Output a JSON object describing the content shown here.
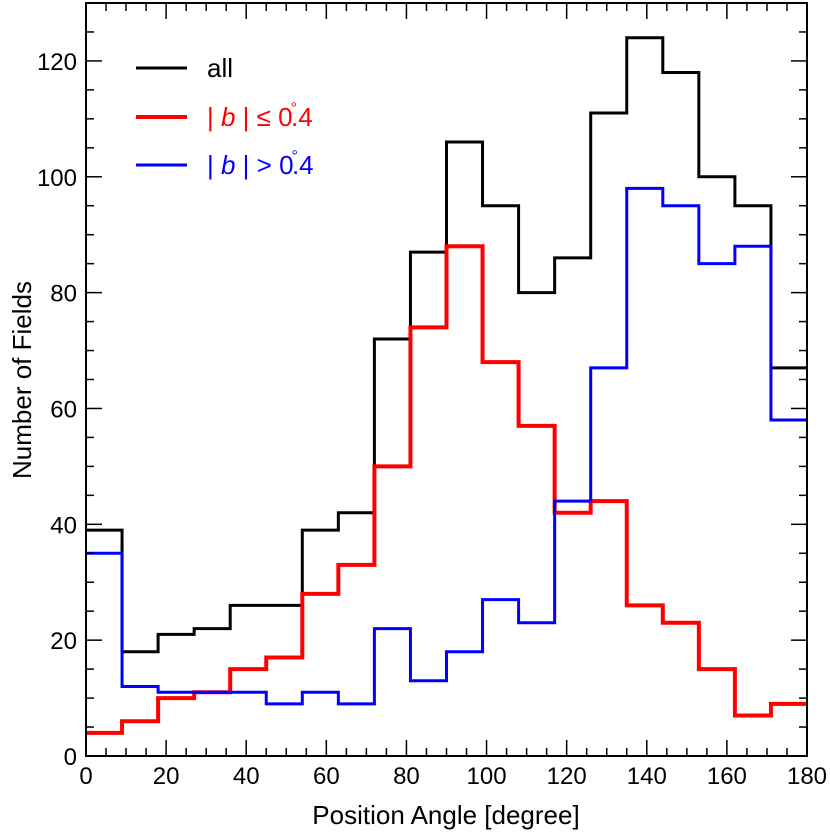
{
  "chart_data": {
    "type": "line",
    "step": true,
    "xlabel": "Position Angle [degree]",
    "ylabel": "Number of Fields",
    "xlim": [
      0,
      180
    ],
    "ylim": [
      0,
      130
    ],
    "x_ticks": [
      0,
      20,
      40,
      60,
      80,
      100,
      120,
      140,
      160,
      180
    ],
    "y_ticks": [
      0,
      20,
      40,
      60,
      80,
      100,
      120
    ],
    "bin_edges": [
      0,
      9,
      18,
      27,
      36,
      45,
      54,
      63,
      72,
      81,
      90,
      99,
      108,
      117,
      126,
      135,
      144,
      153,
      162,
      171,
      180
    ],
    "legend": {
      "position": "top-left"
    },
    "series": [
      {
        "name": "all",
        "legend_parts": [
          "all"
        ],
        "color": "#000000",
        "values": [
          39,
          18,
          21,
          22,
          26,
          26,
          39,
          42,
          72,
          87,
          106,
          95,
          80,
          86,
          111,
          124,
          118,
          100,
          95,
          67
        ]
      },
      {
        "name": "| b | ≤ 0.4°",
        "legend_parts": [
          "| ",
          "b",
          " | ",
          "≤",
          " 0",
          "°",
          ".4"
        ],
        "color": "#ff0000",
        "values": [
          4,
          6,
          10,
          11,
          15,
          17,
          28,
          33,
          50,
          74,
          88,
          68,
          57,
          42,
          44,
          26,
          23,
          15,
          7,
          9
        ]
      },
      {
        "name": "| b | > 0.4°",
        "legend_parts": [
          "| ",
          "b",
          " | ",
          ">",
          " 0",
          "°",
          ".4"
        ],
        "color": "#0000ff",
        "values": [
          35,
          12,
          11,
          11,
          11,
          9,
          11,
          9,
          22,
          13,
          18,
          27,
          23,
          44,
          67,
          98,
          95,
          85,
          88,
          58
        ]
      }
    ]
  }
}
